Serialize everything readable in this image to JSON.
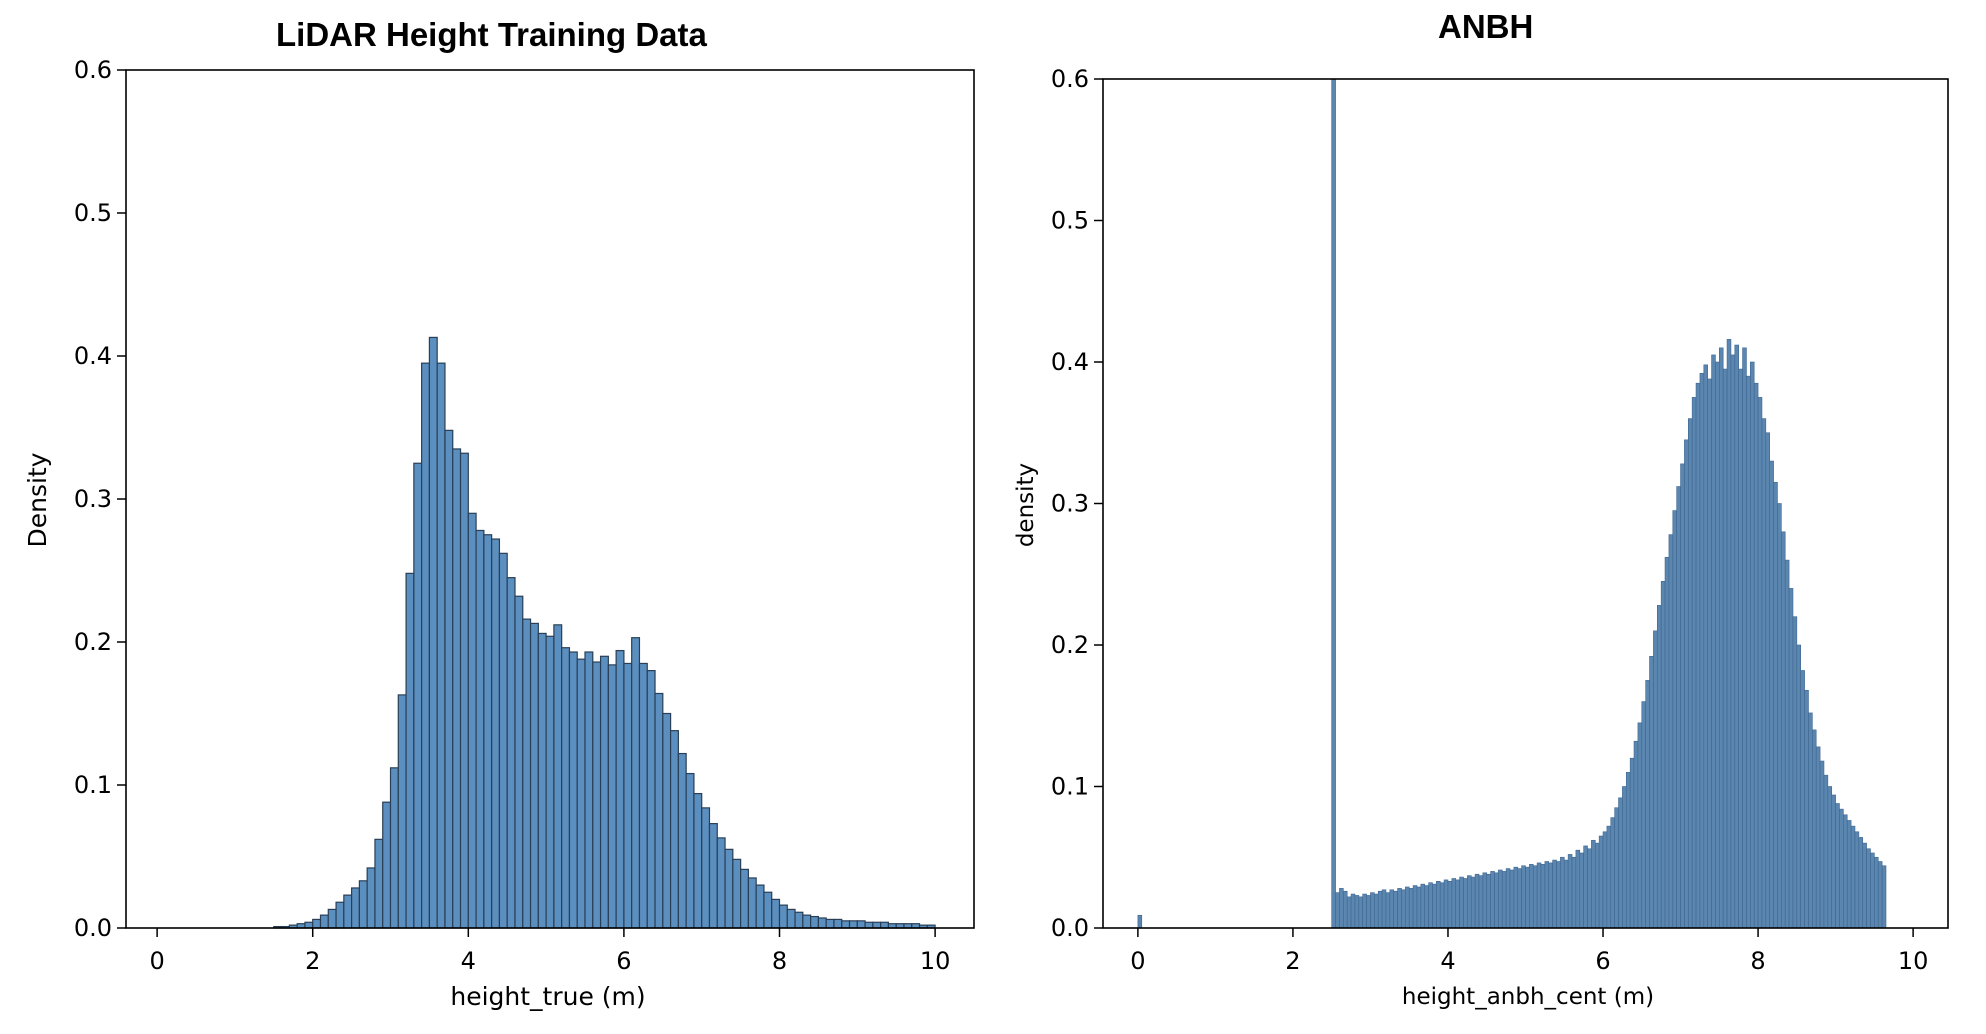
{
  "chart_data": [
    {
      "type": "bar",
      "title": "LiDAR Height Training Data",
      "xlabel": "height_true (m)",
      "ylabel": "Density",
      "xlim": [
        -0.4,
        10.5
      ],
      "ylim": [
        0,
        0.6
      ],
      "xticks": [
        "0",
        "2",
        "4",
        "6",
        "8",
        "10"
      ],
      "yticks": [
        "0.0",
        "0.1",
        "0.2",
        "0.3",
        "0.4",
        "0.5",
        "0.6"
      ],
      "bar_color": "#5b8fc0",
      "edge_color": "#2a3f55",
      "bin_edges_start": 1.5,
      "bin_width": 0.1,
      "values": [
        0.001,
        0.001,
        0.002,
        0.003,
        0.004,
        0.006,
        0.009,
        0.013,
        0.018,
        0.023,
        0.028,
        0.033,
        0.042,
        0.062,
        0.088,
        0.112,
        0.163,
        0.248,
        0.325,
        0.395,
        0.413,
        0.395,
        0.348,
        0.335,
        0.332,
        0.29,
        0.278,
        0.275,
        0.272,
        0.262,
        0.245,
        0.232,
        0.216,
        0.213,
        0.206,
        0.204,
        0.212,
        0.196,
        0.193,
        0.188,
        0.193,
        0.186,
        0.19,
        0.184,
        0.194,
        0.185,
        0.203,
        0.185,
        0.18,
        0.164,
        0.15,
        0.138,
        0.122,
        0.108,
        0.094,
        0.084,
        0.073,
        0.063,
        0.055,
        0.048,
        0.041,
        0.035,
        0.03,
        0.025,
        0.02,
        0.016,
        0.013,
        0.011,
        0.009,
        0.008,
        0.007,
        0.006,
        0.006,
        0.005,
        0.005,
        0.005,
        0.004,
        0.004,
        0.004,
        0.003,
        0.003,
        0.003,
        0.003,
        0.002,
        0.002
      ]
    },
    {
      "type": "bar",
      "title": "ANBH",
      "xlabel": "height_anbh_cent (m)",
      "ylabel": "density",
      "xlim": [
        -0.45,
        10.45
      ],
      "ylim": [
        0,
        0.6
      ],
      "xticks": [
        "0",
        "2",
        "4",
        "6",
        "8",
        "10"
      ],
      "yticks": [
        "0.0",
        "0.1",
        "0.2",
        "0.3",
        "0.4",
        "0.5",
        "0.6"
      ],
      "bar_color": "#5b86b0",
      "edge_color": "#3d6690",
      "spike": {
        "x": 2.5,
        "width": 0.05,
        "value": 0.6
      },
      "small_bar": {
        "x": 0.0,
        "width": 0.05,
        "value": 0.009
      },
      "bin_edges_start": 2.55,
      "bin_width": 0.05,
      "values": [
        0.025,
        0.028,
        0.026,
        0.022,
        0.024,
        0.023,
        0.022,
        0.024,
        0.023,
        0.025,
        0.024,
        0.026,
        0.027,
        0.025,
        0.027,
        0.026,
        0.028,
        0.027,
        0.029,
        0.028,
        0.03,
        0.029,
        0.031,
        0.03,
        0.032,
        0.031,
        0.033,
        0.032,
        0.034,
        0.033,
        0.035,
        0.034,
        0.036,
        0.035,
        0.037,
        0.036,
        0.038,
        0.037,
        0.039,
        0.038,
        0.04,
        0.039,
        0.041,
        0.04,
        0.042,
        0.041,
        0.043,
        0.042,
        0.044,
        0.043,
        0.045,
        0.044,
        0.046,
        0.045,
        0.047,
        0.046,
        0.048,
        0.047,
        0.05,
        0.048,
        0.052,
        0.05,
        0.055,
        0.053,
        0.058,
        0.056,
        0.062,
        0.06,
        0.065,
        0.068,
        0.072,
        0.078,
        0.085,
        0.092,
        0.1,
        0.11,
        0.12,
        0.132,
        0.145,
        0.16,
        0.175,
        0.192,
        0.21,
        0.228,
        0.245,
        0.262,
        0.278,
        0.295,
        0.312,
        0.328,
        0.345,
        0.36,
        0.375,
        0.385,
        0.392,
        0.398,
        0.388,
        0.405,
        0.4,
        0.41,
        0.395,
        0.416,
        0.405,
        0.412,
        0.395,
        0.41,
        0.39,
        0.4,
        0.385,
        0.375,
        0.36,
        0.35,
        0.33,
        0.315,
        0.3,
        0.28,
        0.26,
        0.24,
        0.22,
        0.2,
        0.182,
        0.168,
        0.152,
        0.14,
        0.128,
        0.118,
        0.108,
        0.1,
        0.094,
        0.088,
        0.084,
        0.08,
        0.076,
        0.072,
        0.068,
        0.064,
        0.06,
        0.056,
        0.053,
        0.05,
        0.047,
        0.044
      ]
    }
  ]
}
